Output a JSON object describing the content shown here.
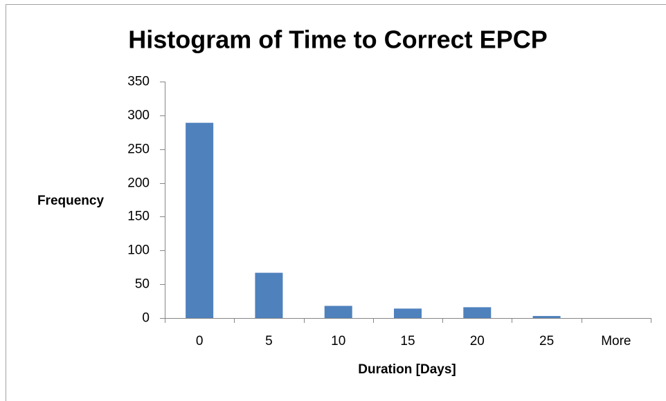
{
  "chart_data": {
    "type": "bar",
    "title": "Histogram of Time to Correct EPCP",
    "x_label": "Duration [Days]",
    "y_label": "Frequency",
    "categories": [
      "0",
      "5",
      "10",
      "15",
      "20",
      "25",
      "More"
    ],
    "values": [
      289,
      67,
      18,
      14,
      16,
      3,
      0
    ],
    "color": "#4f81bd",
    "ylim": [
      0,
      350
    ],
    "yticks": [
      0,
      50,
      100,
      150,
      200,
      250,
      300,
      350
    ],
    "grid": false
  }
}
